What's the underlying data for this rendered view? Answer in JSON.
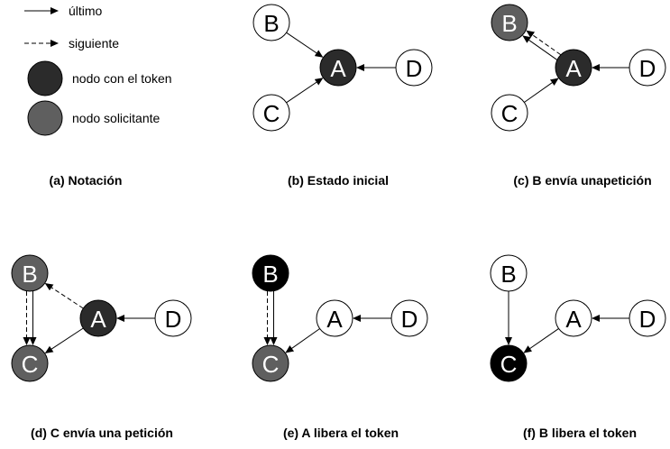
{
  "colors": {
    "token": "#2b2b2b",
    "requesting": "#5f5f5f",
    "black": "#000000",
    "normal": "#ffffff",
    "stroke": "#000000",
    "text_dark": "#ffffff",
    "text_light": "#000000"
  },
  "legend": {
    "last_label": "último",
    "next_label": "siguiente",
    "token_label": "nodo con el token",
    "requesting_label": "nodo solicitante"
  },
  "panels": [
    {
      "caption": "(a) Notación"
    },
    {
      "caption": "(b) Estado inicial",
      "nodes": {
        "B": {
          "label": "B",
          "state": "normal"
        },
        "A": {
          "label": "A",
          "state": "token"
        },
        "C": {
          "label": "C",
          "state": "normal"
        },
        "D": {
          "label": "D",
          "state": "normal"
        }
      },
      "edges": [
        {
          "from": "B",
          "to": "A",
          "kind": "last"
        },
        {
          "from": "C",
          "to": "A",
          "kind": "last"
        },
        {
          "from": "D",
          "to": "A",
          "kind": "last"
        }
      ]
    },
    {
      "caption": "(c) B envía unapetición",
      "nodes": {
        "B": {
          "label": "B",
          "state": "requesting"
        },
        "A": {
          "label": "A",
          "state": "token"
        },
        "C": {
          "label": "C",
          "state": "normal"
        },
        "D": {
          "label": "D",
          "state": "normal"
        }
      },
      "edges": [
        {
          "from": "A",
          "to": "B",
          "kind": "last"
        },
        {
          "from": "A",
          "to": "B",
          "kind": "next"
        },
        {
          "from": "C",
          "to": "A",
          "kind": "last"
        },
        {
          "from": "D",
          "to": "A",
          "kind": "last"
        }
      ]
    },
    {
      "caption": "(d) C envía una petición",
      "nodes": {
        "B": {
          "label": "B",
          "state": "requesting"
        },
        "A": {
          "label": "A",
          "state": "token"
        },
        "C": {
          "label": "C",
          "state": "requesting"
        },
        "D": {
          "label": "D",
          "state": "normal"
        }
      },
      "edges": [
        {
          "from": "A",
          "to": "B",
          "kind": "next"
        },
        {
          "from": "B",
          "to": "C",
          "kind": "last"
        },
        {
          "from": "B",
          "to": "C",
          "kind": "next"
        },
        {
          "from": "A",
          "to": "C",
          "kind": "last"
        },
        {
          "from": "D",
          "to": "A",
          "kind": "last"
        }
      ]
    },
    {
      "caption": "(e) A libera el token",
      "nodes": {
        "B": {
          "label": "B",
          "state": "black"
        },
        "A": {
          "label": "A",
          "state": "normal"
        },
        "C": {
          "label": "C",
          "state": "requesting"
        },
        "D": {
          "label": "D",
          "state": "normal"
        }
      },
      "edges": [
        {
          "from": "B",
          "to": "C",
          "kind": "last"
        },
        {
          "from": "B",
          "to": "C",
          "kind": "next"
        },
        {
          "from": "A",
          "to": "C",
          "kind": "last"
        },
        {
          "from": "D",
          "to": "A",
          "kind": "last"
        }
      ]
    },
    {
      "caption": "(f) B libera el token",
      "nodes": {
        "B": {
          "label": "B",
          "state": "normal"
        },
        "A": {
          "label": "A",
          "state": "normal"
        },
        "C": {
          "label": "C",
          "state": "black"
        },
        "D": {
          "label": "D",
          "state": "normal"
        }
      },
      "edges": [
        {
          "from": "B",
          "to": "C",
          "kind": "last"
        },
        {
          "from": "A",
          "to": "C",
          "kind": "last"
        },
        {
          "from": "D",
          "to": "A",
          "kind": "last"
        }
      ]
    }
  ]
}
